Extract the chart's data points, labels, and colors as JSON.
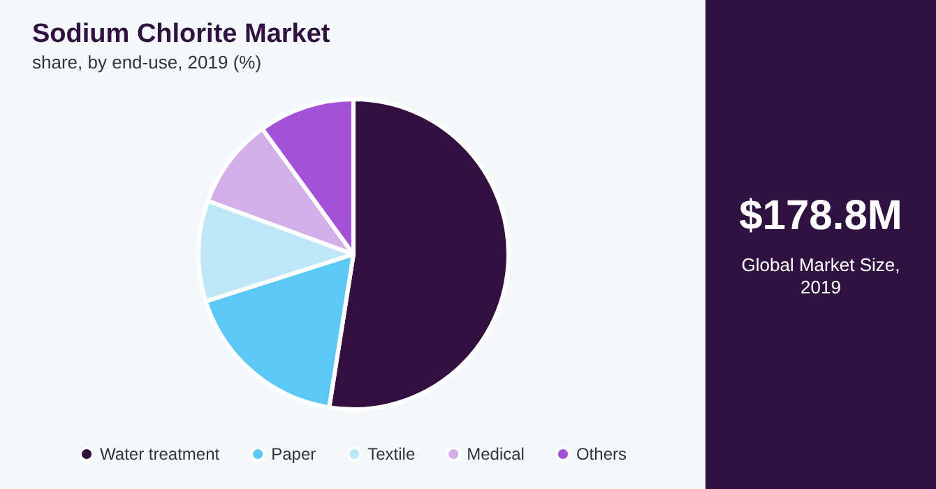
{
  "chart_data": {
    "type": "pie",
    "title": "Sodium Chlorite Market",
    "subtitle": "share, by end-use, 2019 (%)",
    "categories": [
      "Water treatment",
      "Paper",
      "Textile",
      "Medical",
      "Others"
    ],
    "values": [
      52.5,
      17.6,
      10.5,
      9.4,
      10.0
    ],
    "colors": [
      "#33103f",
      "#5bc8f5",
      "#bde6f7",
      "#d3aee8",
      "#a352d8"
    ],
    "legend": "bottom",
    "annotations": [
      "$178.8M",
      "Global Market Size, 2019"
    ]
  }
}
